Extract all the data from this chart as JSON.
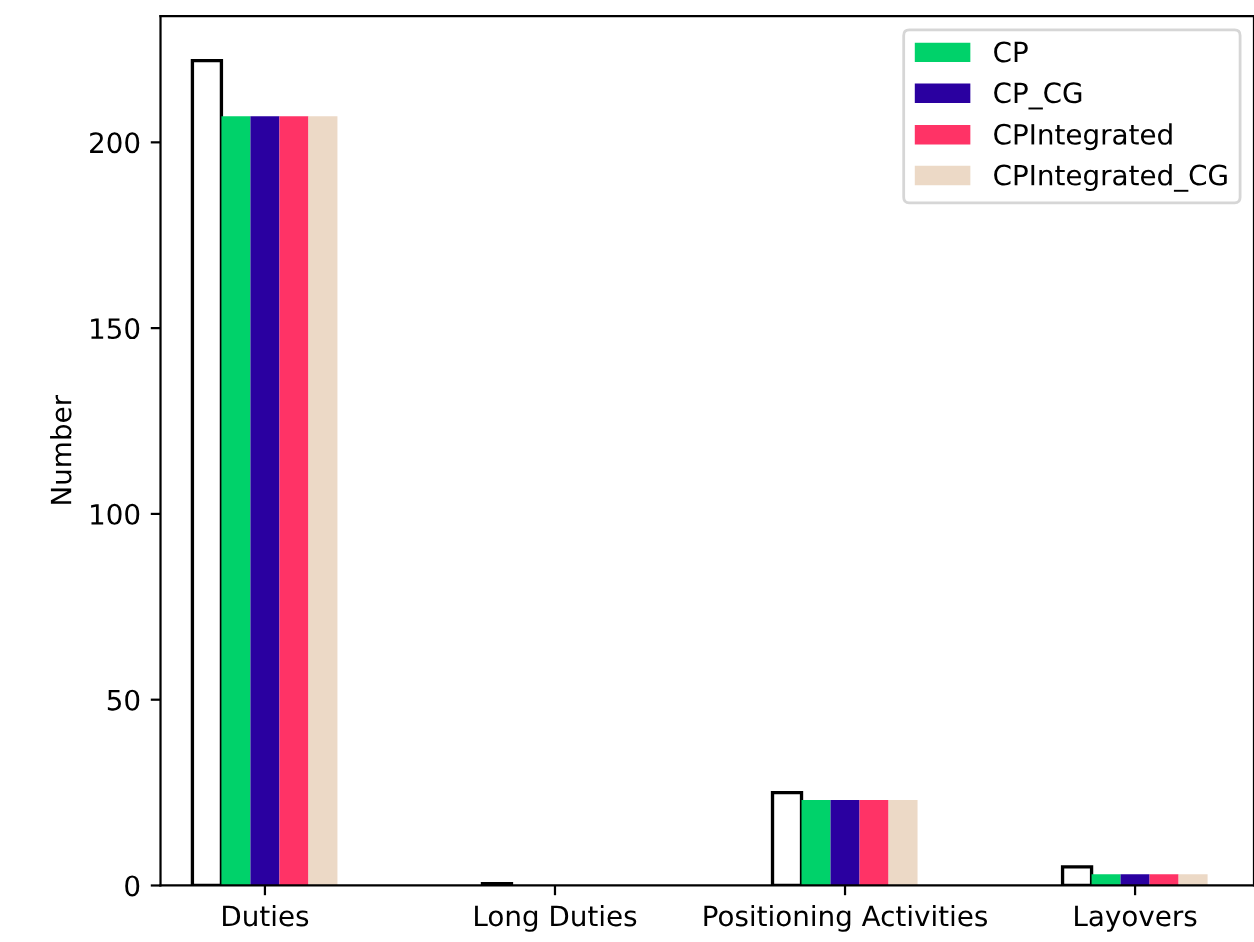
{
  "chart_data": {
    "type": "bar",
    "ylabel": "Number",
    "categories": [
      "Duties",
      "Long Duties",
      "Positioning Activities",
      "Layovers"
    ],
    "series": [
      {
        "color": "#ffffff",
        "values": [
          222,
          0.5,
          25,
          5
        ]
      },
      {
        "name": "CP",
        "color": "#00d26a",
        "values": [
          207,
          0,
          23,
          3
        ]
      },
      {
        "name": "CP_CG",
        "color": "#2a00a0",
        "values": [
          207,
          0,
          23,
          3
        ]
      },
      {
        "name": "CPIntegrated",
        "color": "#ff3366",
        "values": [
          207,
          0,
          23,
          3
        ]
      },
      {
        "name": "CPIntegrated_CG",
        "color": "#ecd9c6",
        "values": [
          207,
          0,
          23,
          3
        ]
      }
    ],
    "ylim": [
      0,
      234
    ],
    "yticks": [
      0,
      50,
      100,
      150,
      200
    ],
    "legend": "top right",
    "grid": false
  }
}
